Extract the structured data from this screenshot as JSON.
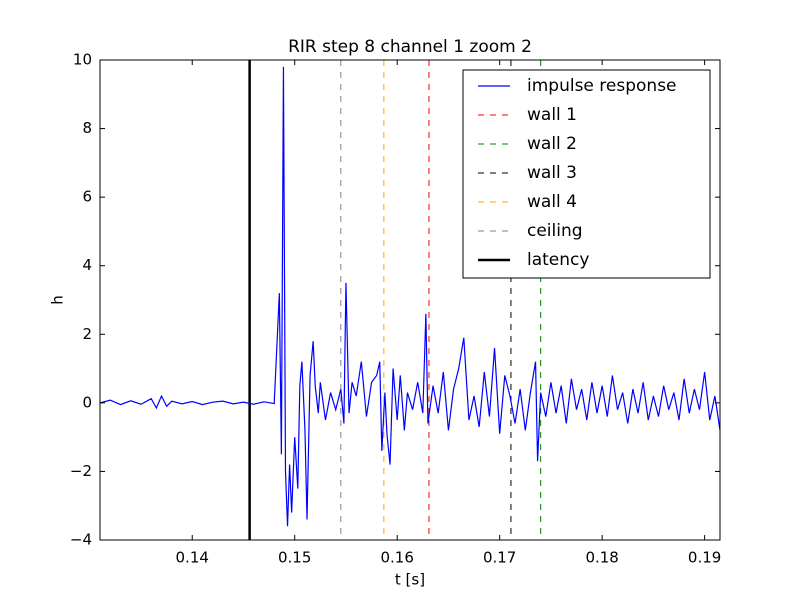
{
  "chart_data": {
    "type": "line",
    "title": "RIR step 8 channel 1 zoom 2",
    "x_label": "t [s]",
    "y_label": "h",
    "xlim": [
      0.131,
      0.1915
    ],
    "ylim": [
      -4,
      10
    ],
    "xticks": [
      0.14,
      0.15,
      0.16,
      0.17,
      0.18,
      0.19
    ],
    "yticks": [
      {
        "value": -4,
        "label": "−4"
      },
      {
        "value": -2,
        "label": "−2"
      },
      0,
      2,
      4,
      6,
      8,
      10
    ],
    "grid": false,
    "legend": "upper right",
    "series": [
      {
        "name": "impulse response",
        "color": "#0000ff",
        "x": [
          0.131,
          0.132,
          0.133,
          0.134,
          0.135,
          0.136,
          0.1365,
          0.137,
          0.1375,
          0.138,
          0.139,
          0.14,
          0.141,
          0.142,
          0.143,
          0.144,
          0.145,
          0.146,
          0.147,
          0.148,
          0.1485,
          0.1487,
          0.1489,
          0.1491,
          0.1493,
          0.1495,
          0.1497,
          0.15,
          0.1503,
          0.1505,
          0.1507,
          0.151,
          0.1512,
          0.1515,
          0.1518,
          0.152,
          0.1523,
          0.1525,
          0.153,
          0.1535,
          0.154,
          0.1545,
          0.1548,
          0.155,
          0.1553,
          0.1556,
          0.156,
          0.1565,
          0.157,
          0.1575,
          0.158,
          0.1583,
          0.1585,
          0.1588,
          0.159,
          0.1593,
          0.1596,
          0.16,
          0.1603,
          0.1607,
          0.161,
          0.1615,
          0.162,
          0.1625,
          0.1628,
          0.163,
          0.1635,
          0.164,
          0.1645,
          0.165,
          0.1655,
          0.166,
          0.1665,
          0.167,
          0.1675,
          0.168,
          0.1685,
          0.169,
          0.1695,
          0.17,
          0.1705,
          0.171,
          0.1715,
          0.172,
          0.1725,
          0.173,
          0.1735,
          0.1737,
          0.174,
          0.1745,
          0.175,
          0.1755,
          0.176,
          0.1765,
          0.177,
          0.1775,
          0.178,
          0.1785,
          0.179,
          0.1795,
          0.18,
          0.1805,
          0.181,
          0.1815,
          0.182,
          0.1825,
          0.183,
          0.1835,
          0.184,
          0.1845,
          0.185,
          0.1855,
          0.186,
          0.1865,
          0.187,
          0.1875,
          0.188,
          0.1885,
          0.189,
          0.1895,
          0.19,
          0.1905,
          0.191,
          0.1915
        ],
        "values": [
          0.0,
          0.08,
          -0.05,
          0.06,
          -0.04,
          0.12,
          -0.15,
          0.2,
          -0.1,
          0.05,
          -0.03,
          0.04,
          -0.05,
          0.02,
          0.05,
          -0.03,
          0.02,
          -0.04,
          0.03,
          -0.02,
          3.2,
          -1.5,
          9.8,
          -2.0,
          -3.6,
          -1.8,
          -3.2,
          -1.0,
          -2.5,
          0.5,
          1.2,
          -0.8,
          -3.4,
          0.8,
          1.8,
          0.5,
          -0.3,
          0.6,
          -0.5,
          0.3,
          -0.2,
          0.4,
          -0.6,
          3.5,
          -0.3,
          0.6,
          0.2,
          1.2,
          -0.4,
          0.6,
          0.8,
          1.2,
          -1.4,
          0.3,
          -0.9,
          -1.8,
          1.0,
          -0.5,
          0.8,
          -0.8,
          0.3,
          -0.2,
          0.6,
          -0.3,
          2.6,
          -0.6,
          0.5,
          -0.3,
          0.9,
          -0.8,
          0.4,
          1.0,
          1.9,
          -0.5,
          0.2,
          -0.7,
          0.9,
          -0.4,
          1.6,
          -0.9,
          0.8,
          0.2,
          -0.6,
          0.4,
          -0.8,
          0.3,
          1.2,
          -1.7,
          0.3,
          -0.4,
          0.6,
          -0.3,
          0.5,
          -0.6,
          0.7,
          -0.2,
          0.4,
          -0.5,
          0.6,
          -0.3,
          0.5,
          -0.4,
          0.8,
          -0.2,
          0.3,
          -0.6,
          0.4,
          -0.3,
          0.6,
          -0.5,
          0.2,
          -0.4,
          0.5,
          -0.2,
          0.3,
          -0.5,
          0.7,
          -0.3,
          0.4,
          -0.2,
          0.9,
          -0.5,
          0.2,
          -0.8
        ]
      }
    ],
    "vlines": [
      {
        "name": "wall 1",
        "color": "#ff0000",
        "style": "dashed",
        "x": 0.1631
      },
      {
        "name": "wall 2",
        "color": "#008000",
        "style": "dashed",
        "x": 0.174
      },
      {
        "name": "wall 3",
        "color": "#000000",
        "style": "dashed",
        "x": 0.1711
      },
      {
        "name": "wall 4",
        "color": "#ffa500",
        "style": "dashed",
        "x": 0.1587
      },
      {
        "name": "ceiling",
        "color": "#808080",
        "style": "dashed",
        "x": 0.1545
      },
      {
        "name": "latency",
        "color": "#000000",
        "style": "solid",
        "x": 0.1456
      }
    ]
  }
}
